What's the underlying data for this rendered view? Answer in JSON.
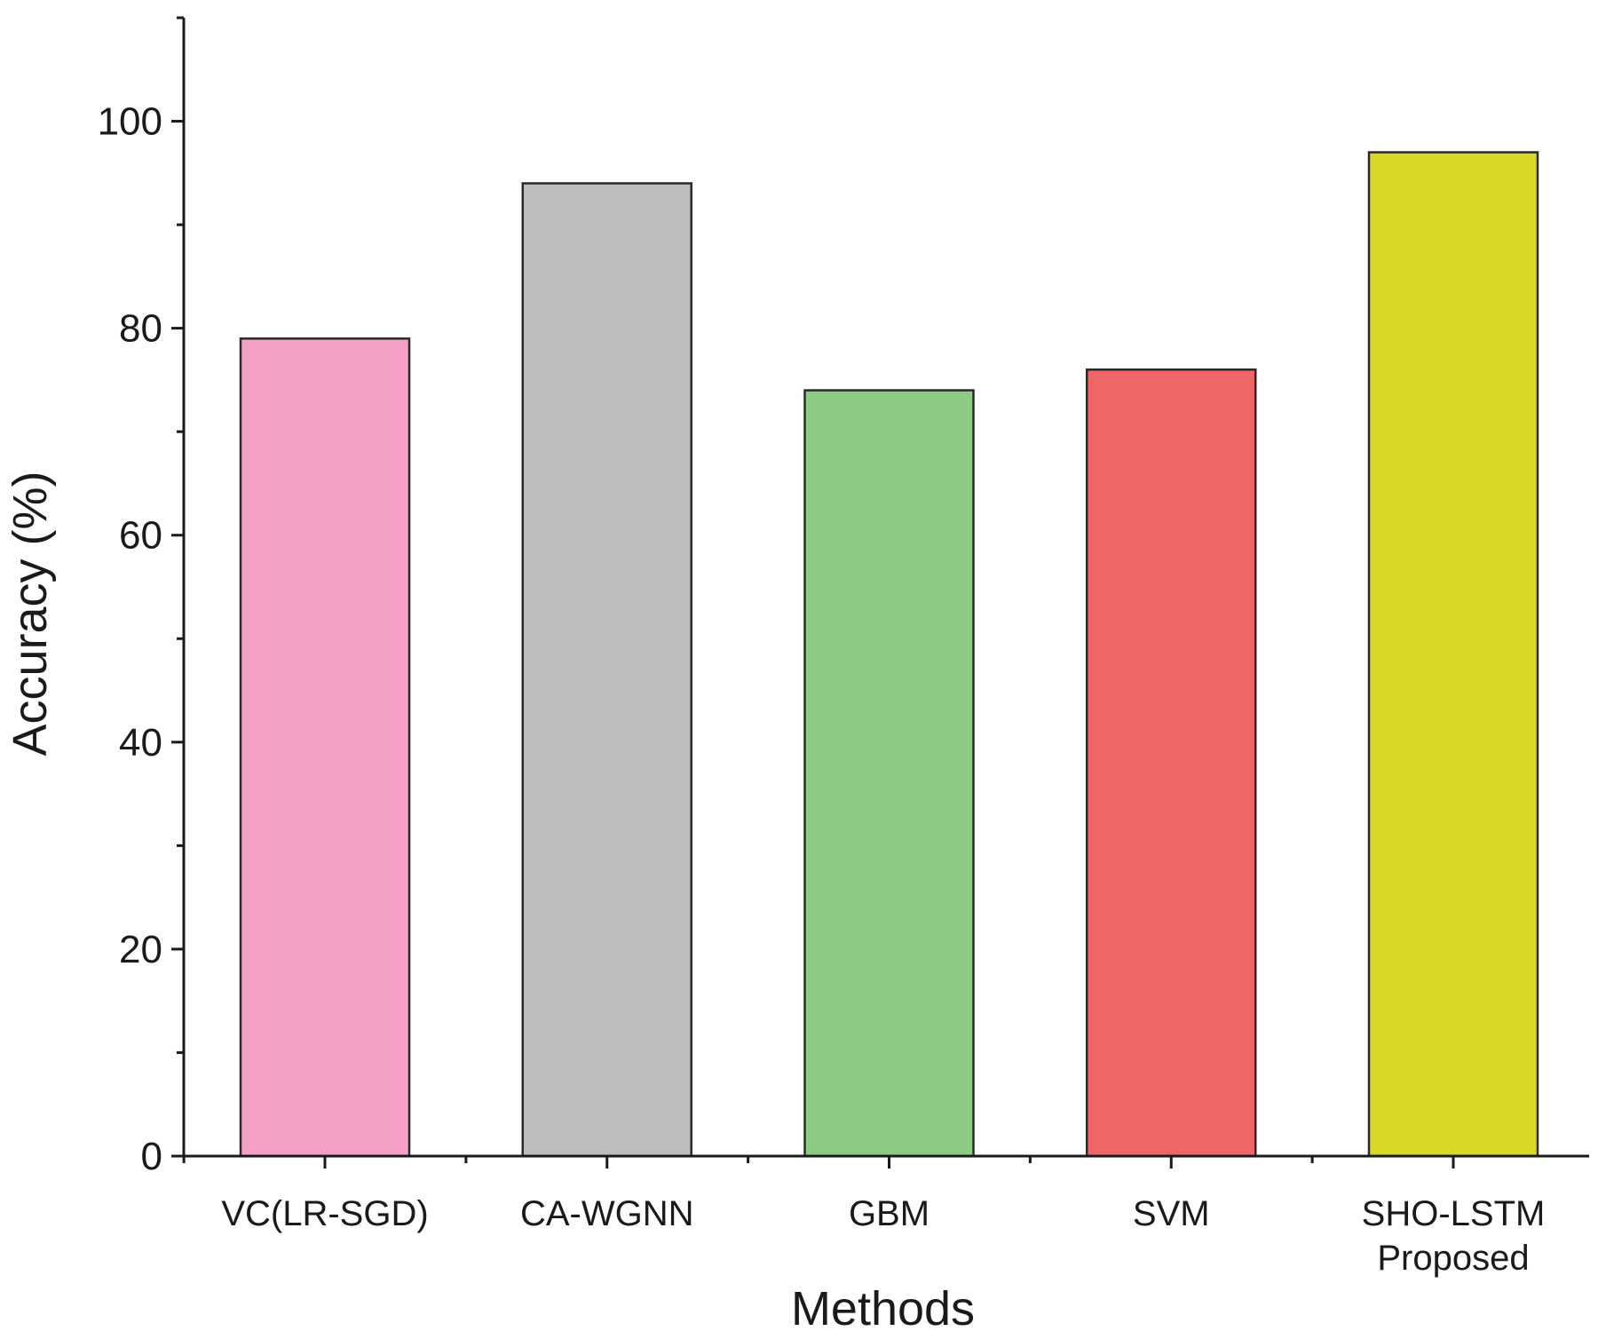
{
  "chart_data": {
    "type": "bar",
    "categories": [
      [
        "VC(LR-SGD)"
      ],
      [
        "CA-WGNN"
      ],
      [
        "GBM"
      ],
      [
        "SVM"
      ],
      [
        "SHO-LSTM",
        "Proposed"
      ]
    ],
    "values": [
      79,
      94,
      74,
      76,
      97
    ],
    "colors": [
      "#f4a0c6",
      "#bdbdbd",
      "#8dcb85",
      "#f06565",
      "#d8d824"
    ],
    "xlabel": "Methods",
    "ylabel": "Accuracy (%)",
    "ylim": [
      0,
      110
    ],
    "yticks": [
      0,
      20,
      40,
      60,
      80,
      100
    ],
    "yticks_minor": [
      10,
      30,
      50,
      70,
      90,
      110
    ],
    "grid": false,
    "legend": "none"
  }
}
